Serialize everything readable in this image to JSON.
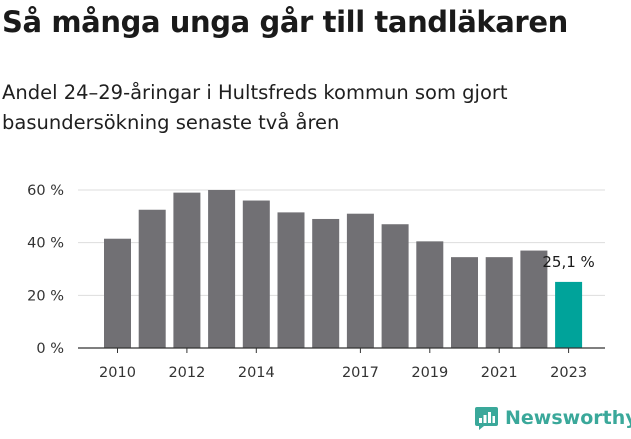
{
  "title": "Så många unga går till tandläkaren",
  "subtitle": "Andel 24–29-åringar i Hultsfreds kommun som gjort basundersökning senaste två åren",
  "brand": {
    "name": "Newsworthy",
    "icon": "newsworthy-logo-icon",
    "color": "#3aa89a"
  },
  "colors": {
    "bar": "#717074",
    "highlight": "#00a39a",
    "grid": "#dddddd",
    "axis": "#333333"
  },
  "chart_data": {
    "type": "bar",
    "title": "Så många unga går till tandläkaren",
    "subtitle": "Andel 24–29-åringar i Hultsfreds kommun som gjort basundersökning senaste två åren",
    "categories": [
      2010,
      2011,
      2012,
      2013,
      2014,
      2015,
      2016,
      2017,
      2018,
      2019,
      2020,
      2021,
      2022,
      2023
    ],
    "values": [
      41.5,
      52.5,
      59,
      60,
      56,
      51.5,
      49,
      51,
      47,
      40.5,
      34.5,
      34.5,
      37,
      25.1
    ],
    "unit": "%",
    "ylim": [
      0,
      60
    ],
    "yticks": [
      0,
      20,
      40,
      60
    ],
    "ytick_labels": [
      "0 %",
      "20 %",
      "40 %",
      "60 %"
    ],
    "xtick_labels": [
      "2010",
      "2012",
      "2014",
      "2017",
      "2019",
      "2021",
      "2023"
    ],
    "highlight": {
      "category": 2023,
      "label": "25,1 %"
    },
    "grid": true,
    "legend": "none"
  }
}
